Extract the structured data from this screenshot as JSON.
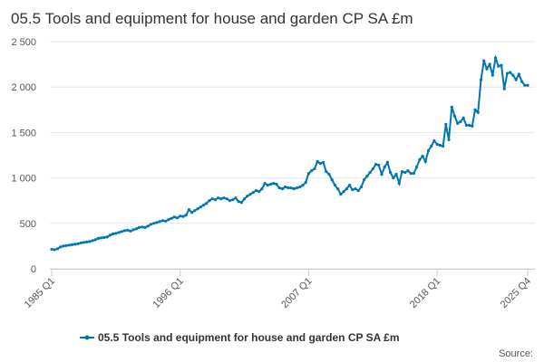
{
  "chart_data": {
    "type": "line",
    "title": "05.5 Tools and equipment for house and garden CP SA £m",
    "categories": [
      "1985 Q1",
      null,
      null,
      null,
      null,
      null,
      null,
      null,
      null,
      null,
      null,
      null,
      null,
      null,
      null,
      null,
      null,
      null,
      null,
      null,
      null,
      null,
      null,
      null,
      null,
      null,
      null,
      null,
      null,
      null,
      null,
      null,
      null,
      null,
      null,
      null,
      null,
      null,
      null,
      null,
      null,
      null,
      null,
      null,
      "1996 Q1",
      null,
      null,
      null,
      null,
      null,
      null,
      null,
      null,
      null,
      null,
      null,
      null,
      null,
      null,
      null,
      null,
      null,
      null,
      null,
      null,
      null,
      null,
      null,
      null,
      null,
      null,
      null,
      null,
      null,
      null,
      null,
      null,
      null,
      null,
      null,
      null,
      null,
      null,
      null,
      null,
      null,
      null,
      null,
      "2007 Q1",
      null,
      null,
      null,
      null,
      null,
      null,
      null,
      null,
      null,
      null,
      null,
      null,
      null,
      null,
      null,
      null,
      null,
      null,
      null,
      null,
      null,
      null,
      null,
      null,
      null,
      null,
      null,
      null,
      null,
      null,
      null,
      null,
      null,
      null,
      null,
      null,
      null,
      null,
      null,
      null,
      null,
      null,
      null,
      "2018 Q1",
      null,
      null,
      null,
      null,
      null,
      null,
      null,
      null,
      null,
      null,
      null,
      null,
      null,
      null,
      null,
      null,
      null,
      null,
      null,
      null,
      null,
      null,
      null,
      null,
      null,
      null,
      null,
      null,
      null,
      null,
      "2025 Q4"
    ],
    "series": [
      {
        "name": "05.5 Tools and equipment for house and garden CP SA £m",
        "color": "#0075b4",
        "values": [
          215,
          210,
          220,
          240,
          250,
          255,
          260,
          265,
          270,
          275,
          285,
          290,
          295,
          300,
          310,
          320,
          335,
          340,
          345,
          350,
          370,
          385,
          390,
          400,
          410,
          420,
          425,
          415,
          430,
          440,
          455,
          460,
          455,
          470,
          490,
          500,
          510,
          520,
          530,
          525,
          540,
          555,
          570,
          560,
          580,
          575,
          590,
          650,
          620,
          640,
          660,
          680,
          700,
          720,
          750,
          770,
          760,
          780,
          770,
          780,
          770,
          750,
          760,
          780,
          740,
          730,
          770,
          800,
          820,
          840,
          860,
          850,
          880,
          940,
          920,
          930,
          940,
          930,
          890,
          880,
          900,
          890,
          890,
          880,
          890,
          900,
          920,
          950,
          1050,
          1080,
          1100,
          1180,
          1160,
          1170,
          1070,
          1040,
          980,
          920,
          880,
          820,
          850,
          880,
          920,
          870,
          880,
          860,
          900,
          980,
          1020,
          1060,
          1100,
          1150,
          1140,
          1040,
          1120,
          1170,
          1060,
          1000,
          1040,
          940,
          1070,
          1060,
          1080,
          1050,
          1050,
          1120,
          1200,
          1240,
          1180,
          1300,
          1350,
          1410,
          1370,
          1360,
          1350,
          1590,
          1420,
          1780,
          1680,
          1600,
          1620,
          1660,
          1580,
          1580,
          1570,
          1750,
          1720,
          2080,
          2290,
          2200,
          2250,
          2130,
          2320,
          2230,
          2240,
          1980,
          2150,
          2160,
          2130,
          2080,
          2140,
          2060,
          2020,
          2020
        ]
      }
    ],
    "ylim": [
      0,
      2500
    ],
    "yticks": [
      0,
      500,
      {
        "value": 1000,
        "label": "1 000"
      },
      {
        "value": 1500,
        "label": "1 500"
      },
      {
        "value": 2000,
        "label": "2 000"
      },
      {
        "value": 2500,
        "label": "2 500"
      }
    ],
    "grid": true,
    "source": "Source:"
  }
}
